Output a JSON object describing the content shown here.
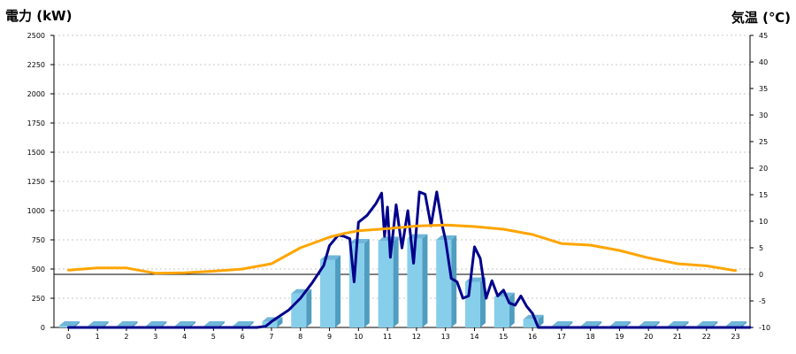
{
  "chart_data": {
    "type": "bar",
    "left_title": "電力 (kW)",
    "right_title": "気温 (℃)",
    "categories": [
      "0",
      "1",
      "2",
      "3",
      "4",
      "5",
      "6",
      "7",
      "8",
      "9",
      "10",
      "11",
      "12",
      "13",
      "14",
      "15",
      "16",
      "17",
      "18",
      "19",
      "20",
      "21",
      "22",
      "23"
    ],
    "left_ylim": [
      0,
      2500
    ],
    "left_yticks": [
      "0",
      "250",
      "500",
      "750",
      "1000",
      "1250",
      "1500",
      "1750",
      "2000",
      "2250",
      "2500"
    ],
    "right_ylim": [
      -10,
      45
    ],
    "right_yticks": [
      "-10",
      "-5",
      "0",
      "5",
      "10",
      "15",
      "20",
      "25",
      "30",
      "35",
      "40",
      "45"
    ],
    "grid": true,
    "series": [
      {
        "kind": "bar",
        "axis": "left",
        "values": [
          15,
          15,
          15,
          15,
          15,
          15,
          15,
          50,
          290,
          580,
          720,
          740,
          760,
          750,
          390,
          260,
          70,
          15,
          15,
          15,
          15,
          15,
          15,
          15
        ]
      },
      {
        "kind": "line",
        "axis": "left",
        "x": [
          0,
          6.5,
          6.8,
          7,
          7.3,
          7.6,
          8,
          8.4,
          8.8,
          9,
          9.3,
          9.5,
          9.7,
          9.85,
          10,
          10.3,
          10.6,
          10.8,
          10.9,
          11,
          11.1,
          11.3,
          11.5,
          11.7,
          11.9,
          12.1,
          12.3,
          12.5,
          12.7,
          12.9,
          13,
          13.2,
          13.4,
          13.6,
          13.8,
          14,
          14.2,
          14.4,
          14.6,
          14.8,
          15,
          15.2,
          15.4,
          15.6,
          15.8,
          16,
          16.2,
          23.5
        ],
        "values": [
          0,
          0,
          10,
          50,
          100,
          150,
          250,
          380,
          530,
          700,
          790,
          780,
          760,
          390,
          900,
          960,
          1060,
          1150,
          780,
          1030,
          600,
          1050,
          680,
          1000,
          550,
          1160,
          1140,
          870,
          1160,
          860,
          750,
          420,
          390,
          250,
          270,
          690,
          590,
          250,
          400,
          270,
          320,
          210,
          190,
          270,
          180,
          120,
          0,
          0
        ]
      },
      {
        "kind": "line",
        "axis": "right",
        "x": [
          0,
          1,
          2,
          3,
          4,
          5,
          6,
          7,
          7.5,
          8,
          8.5,
          9,
          9.5,
          10,
          11,
          12,
          13,
          14,
          15,
          16,
          17,
          18,
          19,
          20,
          21,
          22,
          23
        ],
        "values": [
          0.8,
          1.2,
          1.2,
          0.2,
          0.3,
          0.6,
          1,
          2,
          3.5,
          5,
          6,
          7,
          7.7,
          8.2,
          8.6,
          9.1,
          9.3,
          9,
          8.5,
          7.5,
          5.8,
          5.5,
          4.5,
          3.1,
          2,
          1.6,
          0.7
        ]
      }
    ],
    "colors": {
      "bar": "#87ceeb",
      "bar_side": "#4f9dc0",
      "bar_top": "#6fb6d8",
      "power_line": "#00008b",
      "temp_line": "#ffa500",
      "left_title": "#1e5aa8",
      "right_title": "#e87722"
    }
  }
}
